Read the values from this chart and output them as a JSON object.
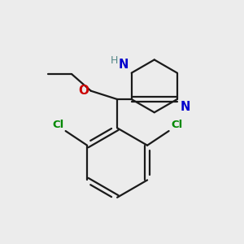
{
  "background_color": "#ececec",
  "bond_color": "#1a1a1a",
  "n_color": "#0000cc",
  "o_color": "#cc0000",
  "cl_color": "#008800",
  "h_color": "#558888",
  "bond_width": 1.6,
  "figsize": [
    3.0,
    3.0
  ],
  "dpi": 100,
  "xlim": [
    0,
    10
  ],
  "ylim": [
    0,
    10
  ]
}
